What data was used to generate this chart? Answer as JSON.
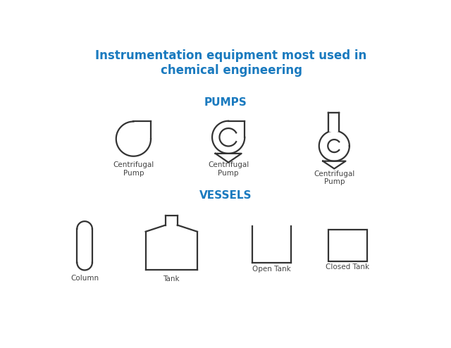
{
  "title": "Instrumentation equipment most used in\nchemical engineering",
  "title_color": "#1a7abf",
  "title_fontsize": 12,
  "pumps_label": "PUMPS",
  "vessels_label": "VESSELS",
  "section_label_color": "#1a7abf",
  "section_label_fontsize": 11,
  "symbol_label_fontsize": 7.5,
  "symbol_label_color": "#444444",
  "bg_color": "#ffffff",
  "line_color": "#333333",
  "line_width": 1.6
}
